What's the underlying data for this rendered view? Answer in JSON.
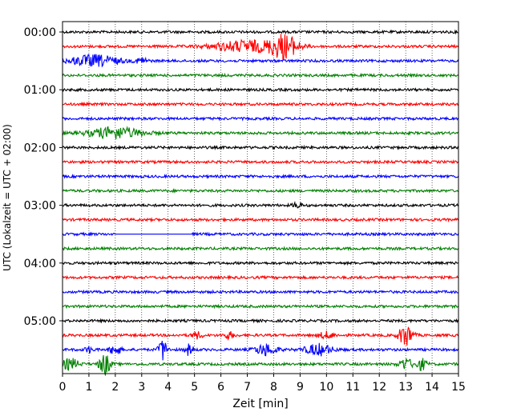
{
  "chart_data": {
    "type": "line",
    "title": "",
    "xlabel": "Zeit  [min]",
    "ylabel": "UTC (Lokalzeit = UTC + 02:00)",
    "xlim": [
      0,
      15
    ],
    "x_ticks": [
      "0",
      "1",
      "2",
      "3",
      "4",
      "5",
      "6",
      "7",
      "8",
      "9",
      "10",
      "11",
      "12",
      "13",
      "14",
      "15"
    ],
    "y_ticks": [
      "00:00",
      "01:00",
      "02:00",
      "03:00",
      "04:00",
      "05:00"
    ],
    "grid": "vertical dotted lines at each minute",
    "trace_minutes": 15,
    "traces_per_hour": 4,
    "colors": [
      "#000000",
      "#ff0000",
      "#0000ff",
      "#008000"
    ],
    "traces": [
      {
        "start": "00:00",
        "color": "#000000",
        "events": []
      },
      {
        "start": "00:15",
        "color": "#ff0000",
        "events": [
          {
            "t": 8.4,
            "amp": "large",
            "dur": 1.0
          },
          {
            "t": 7.0,
            "amp": "medium",
            "dur": 2.5
          }
        ]
      },
      {
        "start": "00:30",
        "color": "#0000ff",
        "events": [
          {
            "t": 1.2,
            "amp": "medium",
            "dur": 1.8
          },
          {
            "t": 3.0,
            "amp": "small",
            "dur": 0.4
          }
        ]
      },
      {
        "start": "00:45",
        "color": "#008000",
        "events": []
      },
      {
        "start": "01:00",
        "color": "#000000",
        "events": []
      },
      {
        "start": "01:15",
        "color": "#ff0000",
        "events": []
      },
      {
        "start": "01:30",
        "color": "#0000ff",
        "events": []
      },
      {
        "start": "01:45",
        "color": "#008000",
        "events": [
          {
            "t": 2.0,
            "amp": "medium",
            "dur": 2.0
          }
        ]
      },
      {
        "start": "02:00",
        "color": "#000000",
        "events": []
      },
      {
        "start": "02:15",
        "color": "#ff0000",
        "events": []
      },
      {
        "start": "02:30",
        "color": "#0000ff",
        "events": []
      },
      {
        "start": "02:45",
        "color": "#008000",
        "events": []
      },
      {
        "start": "03:00",
        "color": "#000000",
        "events": [
          {
            "t": 8.9,
            "amp": "small",
            "dur": 0.3
          }
        ]
      },
      {
        "start": "03:15",
        "color": "#ff0000",
        "events": []
      },
      {
        "start": "03:30",
        "color": "#0000ff",
        "events": [],
        "gap": [
          2.0,
          4.9
        ]
      },
      {
        "start": "03:45",
        "color": "#008000",
        "events": []
      },
      {
        "start": "04:00",
        "color": "#000000",
        "events": []
      },
      {
        "start": "04:15",
        "color": "#ff0000",
        "events": []
      },
      {
        "start": "04:30",
        "color": "#0000ff",
        "events": []
      },
      {
        "start": "04:45",
        "color": "#008000",
        "events": []
      },
      {
        "start": "05:00",
        "color": "#000000",
        "events": []
      },
      {
        "start": "05:15",
        "color": "#ff0000",
        "events": [
          {
            "t": 13.0,
            "amp": "large",
            "dur": 0.5
          },
          {
            "t": 5.1,
            "amp": "small",
            "dur": 0.4
          },
          {
            "t": 6.3,
            "amp": "small",
            "dur": 0.4
          },
          {
            "t": 10.0,
            "amp": "small",
            "dur": 0.6
          }
        ]
      },
      {
        "start": "05:30",
        "color": "#0000ff",
        "events": [
          {
            "t": 1.0,
            "amp": "small",
            "dur": 0.3
          },
          {
            "t": 2.0,
            "amp": "medium",
            "dur": 0.4
          },
          {
            "t": 3.8,
            "amp": "large",
            "dur": 0.3
          },
          {
            "t": 4.8,
            "amp": "medium",
            "dur": 0.3
          },
          {
            "t": 7.7,
            "amp": "medium",
            "dur": 0.8
          },
          {
            "t": 9.7,
            "amp": "medium",
            "dur": 1.0
          }
        ]
      },
      {
        "start": "05:45",
        "color": "#008000",
        "events": [
          {
            "t": 0.3,
            "amp": "medium",
            "dur": 0.6
          },
          {
            "t": 1.6,
            "amp": "large",
            "dur": 0.4
          },
          {
            "t": 13.0,
            "amp": "medium",
            "dur": 0.5
          },
          {
            "t": 13.6,
            "amp": "medium",
            "dur": 0.4
          }
        ]
      }
    ]
  }
}
